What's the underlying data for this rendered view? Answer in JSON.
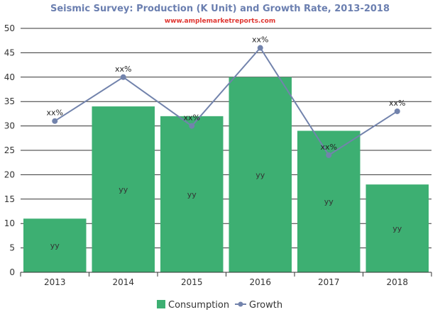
{
  "chart_data": {
    "type": "bar",
    "title": "Seismic Survey: Production (K Unit) and Growth Rate, 2013-2018",
    "subtitle": "www.amplemarketreports.com",
    "categories": [
      "2013",
      "2014",
      "2015",
      "2016",
      "2017",
      "2018"
    ],
    "ylim": [
      0,
      50
    ],
    "yticks": [
      0,
      5,
      10,
      15,
      20,
      25,
      30,
      35,
      40,
      45,
      50
    ],
    "grid": true,
    "legend_position": "bottom",
    "series": [
      {
        "name": "Consumption",
        "type": "bar",
        "color": "#3daf72",
        "values": [
          11,
          34,
          32,
          40,
          29,
          18
        ],
        "labels": [
          "yy",
          "yy",
          "yy",
          "yy",
          "yy",
          "yy"
        ]
      },
      {
        "name": "Growth",
        "type": "line",
        "color": "#7283ac",
        "values": [
          31,
          40,
          30,
          46,
          24,
          33
        ],
        "labels": [
          "xx%",
          "xx%",
          "xx%",
          "xx%",
          "xx%",
          "xx%"
        ]
      }
    ],
    "colors": {
      "title": "#6b7fb0",
      "subtitle": "#e0342f",
      "grid": "#333333",
      "axis": "#333333"
    }
  }
}
